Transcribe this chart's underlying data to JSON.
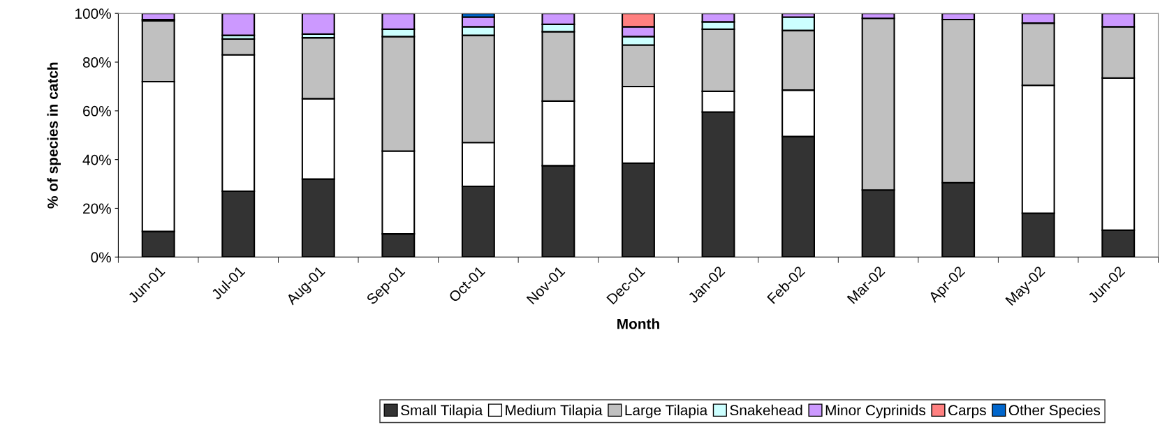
{
  "chart_data": {
    "type": "bar",
    "stacked": true,
    "xlabel": "Month",
    "ylabel": "% of species in catch",
    "categories": [
      "Jun-01",
      "Jul-01",
      "Aug-01",
      "Sep-01",
      "Oct-01",
      "Nov-01",
      "Dec-01",
      "Jan-02",
      "Feb-02",
      "Mar-02",
      "Apr-02",
      "May-02",
      "Jun-02"
    ],
    "series": [
      {
        "name": "Small Tilapia",
        "color": "#333333",
        "values": [
          10.5,
          27,
          32,
          9.5,
          29,
          37.5,
          38.5,
          59.5,
          49.5,
          27.5,
          30.5,
          18,
          11
        ]
      },
      {
        "name": "Medium Tilapia",
        "color": "#ffffff",
        "values": [
          61.5,
          56,
          33,
          34,
          18,
          26.5,
          31.5,
          8.5,
          19,
          null,
          null,
          52.5,
          62.5
        ]
      },
      {
        "name": "Large Tilapia",
        "color": "#c0c0c0",
        "values": [
          25,
          6.5,
          25,
          47,
          44,
          28.5,
          17,
          25.5,
          24.5,
          70.5,
          67,
          25.5,
          21
        ]
      },
      {
        "name": "Snakehead",
        "color": "#ccffff",
        "values": [
          0.5,
          1.5,
          1.5,
          3,
          3.5,
          3,
          3.5,
          3,
          5.5,
          null,
          null,
          null,
          null
        ]
      },
      {
        "name": "Minor Cyprinids",
        "color": "#cc99ff",
        "values": [
          2.5,
          9,
          8.5,
          6.5,
          4,
          4.5,
          4,
          3.5,
          1.5,
          2,
          2.5,
          4,
          5.5
        ]
      },
      {
        "name": "Carps",
        "color": "#ff8080",
        "values": [
          null,
          null,
          null,
          null,
          null,
          null,
          5.5,
          null,
          null,
          null,
          null,
          null,
          null
        ]
      },
      {
        "name": "Other Species",
        "color": "#0066cc",
        "values": [
          null,
          null,
          null,
          null,
          1.5,
          null,
          null,
          null,
          null,
          null,
          null,
          null,
          null
        ]
      }
    ],
    "ylim": [
      0,
      100
    ],
    "yticks": [
      {
        "value": 0,
        "label": "0%"
      },
      {
        "value": 20,
        "label": "20%"
      },
      {
        "value": 40,
        "label": "40%"
      },
      {
        "value": 60,
        "label": "60%"
      },
      {
        "value": 80,
        "label": "80%"
      },
      {
        "value": 100,
        "label": "100%"
      }
    ],
    "grid": false,
    "legend": "bottom"
  }
}
